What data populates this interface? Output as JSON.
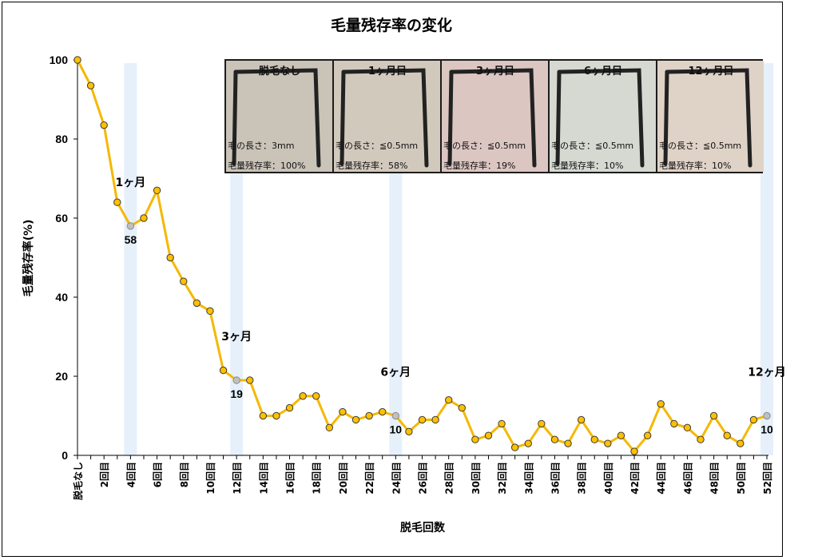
{
  "chart_data": {
    "type": "line",
    "title": "毛量残存率の変化",
    "xlabel": "脱毛回数",
    "ylabel": "毛量残存率(%)",
    "ylim": [
      0,
      100
    ],
    "yticks": [
      0,
      20,
      40,
      60,
      80,
      100
    ],
    "grid": false,
    "line_color": "#f5b800",
    "marker_color": "#ffc000",
    "marker_edge": "#3a3a3a",
    "highlight_marker_color": "#bfbfbf",
    "band_color": "#e6f0fb",
    "tick_labels": [
      "脱毛なし",
      "",
      "2回目",
      "",
      "4回目",
      "",
      "6回目",
      "",
      "8回目",
      "",
      "10回目",
      "",
      "12回目",
      "",
      "14回目",
      "",
      "16回目",
      "",
      "18回目",
      "",
      "20回目",
      "",
      "22回目",
      "",
      "24回目",
      "",
      "26回目",
      "",
      "28回目",
      "",
      "30回目",
      "",
      "32回目",
      "",
      "34回目",
      "",
      "36回目",
      "",
      "38回目",
      "",
      "40回目",
      "",
      "42回目",
      "",
      "44回目",
      "",
      "46回目",
      "",
      "48回目",
      "",
      "50回目",
      "",
      "52回目"
    ],
    "series": [
      {
        "values": [
          100,
          93.5,
          83.5,
          64,
          58,
          60,
          67,
          50,
          44,
          38.5,
          36.5,
          21.5,
          19,
          19,
          10,
          10,
          12,
          15,
          15,
          7,
          11,
          9,
          10,
          11,
          10,
          6,
          9,
          9,
          14,
          12,
          4,
          5,
          8,
          2,
          3,
          8,
          4,
          3,
          9,
          4,
          3,
          5,
          1,
          5,
          13,
          8,
          7,
          4,
          10,
          5,
          3,
          9,
          10
        ]
      }
    ],
    "highlights": [
      {
        "index": 4,
        "label": "1ヶ月",
        "value_label": "58"
      },
      {
        "index": 12,
        "label": "3ヶ月",
        "value_label": "19"
      },
      {
        "index": 24,
        "label": "6ヶ月",
        "value_label": "10"
      },
      {
        "index": 52,
        "label": "12ヶ月",
        "value_label": "10"
      }
    ]
  },
  "photos": [
    {
      "title": "脱毛なし",
      "length": "毛の長さ：3mm",
      "rate": "毛量残存率：100%",
      "tone": "#c9c3b8"
    },
    {
      "title": "1ヶ月目",
      "length": "毛の長さ：≦0.5mm",
      "rate": "毛量残存率：58%",
      "tone": "#d2c9bd"
    },
    {
      "title": "3ヶ月目",
      "length": "毛の長さ：≦0.5mm",
      "rate": "毛量残存率：19%",
      "tone": "#dcc6c2"
    },
    {
      "title": "6ヶ月目",
      "length": "毛の長さ：≦0.5mm",
      "rate": "毛量残存率：10%",
      "tone": "#d6d8d2"
    },
    {
      "title": "12ヶ月目",
      "length": "毛の長さ：≦0.5mm",
      "rate": "毛量残存率：10%",
      "tone": "#dfd2c6"
    }
  ]
}
